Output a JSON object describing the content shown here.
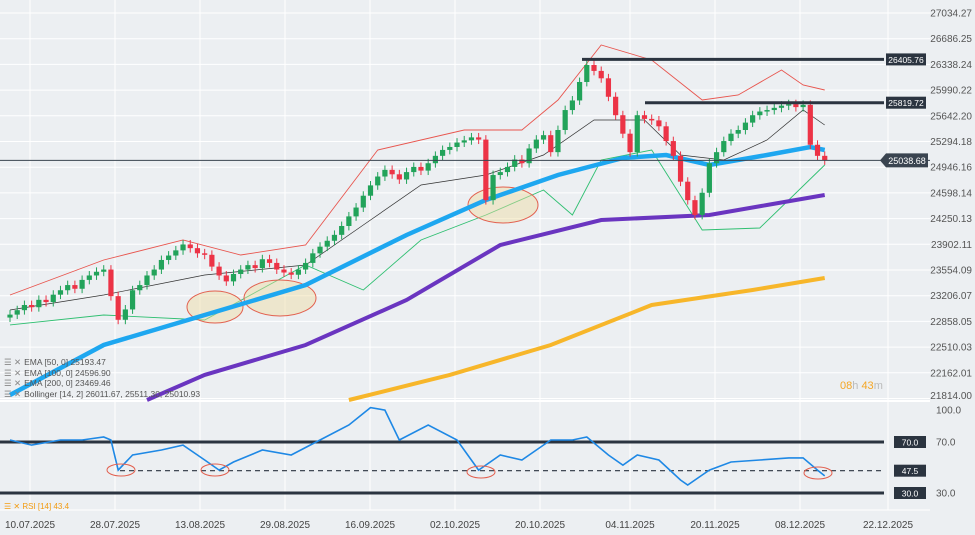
{
  "chart_data": [
    {
      "type": "candlestick",
      "title": "",
      "x_tick_labels": [
        "10.07.2025",
        "28.07.2025",
        "13.08.2025",
        "29.08.2025",
        "16.09.2025",
        "02.10.2025",
        "20.10.2025",
        "04.11.2025",
        "20.11.2025",
        "08.12.2025",
        "22.12.2025"
      ],
      "y_tick_labels": [
        "27034.27",
        "26686.25",
        "26338.24",
        "25990.22",
        "25642.20",
        "25294.18",
        "24946.16",
        "24598.14",
        "24250.13",
        "23902.11",
        "23554.09",
        "23206.07",
        "22858.05",
        "22510.03",
        "22162.01",
        "21814.00"
      ],
      "ylim": [
        21814.0,
        27034.27
      ],
      "grid": true,
      "closes": [
        22950,
        23010,
        23080,
        23050,
        23150,
        23120,
        23220,
        23280,
        23350,
        23300,
        23420,
        23480,
        23530,
        23560,
        23200,
        22880,
        23020,
        23280,
        23350,
        23480,
        23560,
        23690,
        23750,
        23820,
        23900,
        23850,
        23780,
        23760,
        23600,
        23480,
        23400,
        23500,
        23560,
        23620,
        23580,
        23700,
        23650,
        23560,
        23520,
        23490,
        23560,
        23650,
        23780,
        23870,
        23950,
        24030,
        24150,
        24280,
        24400,
        24560,
        24700,
        24820,
        24910,
        24850,
        24780,
        24880,
        24950,
        24900,
        25000,
        25100,
        25180,
        25220,
        25280,
        25310,
        25350,
        25320,
        24500,
        24840,
        24880,
        24950,
        25050,
        25000,
        25200,
        25320,
        25380,
        25150,
        25450,
        25720,
        25850,
        26100,
        26330,
        26250,
        26150,
        25900,
        25650,
        25400,
        25150,
        25650,
        25600,
        25580,
        25500,
        25300,
        25100,
        24750,
        24500,
        24300,
        24600,
        25000,
        25150,
        25300,
        25400,
        25450,
        25550,
        25650,
        25700,
        25720,
        25750,
        25780,
        25800,
        25760,
        25790,
        25250,
        25100,
        25038
      ],
      "indicators": [
        {
          "name": "EMA [50, 0]",
          "value": "25193.47",
          "color": "#1ea7f0",
          "points": [
            [
              0,
              21862
            ],
            [
              13,
              22539
            ],
            [
              27,
              22945
            ],
            [
              41,
              23351
            ],
            [
              55,
              24028
            ],
            [
              66,
              24502
            ],
            [
              76,
              24841
            ],
            [
              85,
              25071
            ],
            [
              91,
              25111
            ],
            [
              97,
              24976
            ],
            [
              105,
              25111
            ],
            [
              111,
              25220
            ],
            [
              113,
              25179
            ]
          ]
        },
        {
          "name": "EMA [100, 0]",
          "value": "24596.90",
          "color": "#6a35c0",
          "points": [
            [
              19,
              21794
            ],
            [
              27,
              22133
            ],
            [
              41,
              22539
            ],
            [
              55,
              23148
            ],
            [
              68,
              23893
            ],
            [
              82,
              24231
            ],
            [
              97,
              24299
            ],
            [
              105,
              24434
            ],
            [
              113,
              24570
            ]
          ]
        },
        {
          "name": "EMA [200, 0]",
          "value": "23469.46",
          "color": "#f7b62a",
          "points": [
            [
              47,
              21794
            ],
            [
              61,
              22133
            ],
            [
              75,
              22539
            ],
            [
              89,
              23080
            ],
            [
              103,
              23283
            ],
            [
              113,
              23446
            ]
          ]
        },
        {
          "name": "Bollinger [14, 2]",
          "value": "26011.67,  25511.30,  25010.93",
          "color": "#e8554e",
          "upper": [
            [
              0,
              23216
            ],
            [
              13,
              23690
            ],
            [
              24,
              23960
            ],
            [
              32,
              23757
            ],
            [
              41,
              23893
            ],
            [
              51,
              25179
            ],
            [
              63,
              25450
            ],
            [
              71,
              25450
            ],
            [
              76,
              25856
            ],
            [
              82,
              26601
            ],
            [
              89,
              26398
            ],
            [
              96,
              25856
            ],
            [
              101,
              25924
            ],
            [
              107,
              26262
            ],
            [
              110,
              26059
            ],
            [
              113,
              25991
            ]
          ],
          "middle": [
            [
              0,
              23013
            ],
            [
              13,
              23216
            ],
            [
              27,
              23487
            ],
            [
              41,
              23622
            ],
            [
              49,
              24163
            ],
            [
              57,
              24705
            ],
            [
              66,
              24841
            ],
            [
              74,
              25111
            ],
            [
              81,
              25585
            ],
            [
              88,
              25585
            ],
            [
              93,
              25111
            ],
            [
              99,
              25044
            ],
            [
              105,
              25314
            ],
            [
              110,
              25721
            ],
            [
              113,
              25518
            ]
          ],
          "lower": [
            [
              0,
              22810
            ],
            [
              13,
              22945
            ],
            [
              27,
              22877
            ],
            [
              41,
              23622
            ],
            [
              49,
              23283
            ],
            [
              57,
              23960
            ],
            [
              66,
              24299
            ],
            [
              74,
              24637
            ],
            [
              78,
              24299
            ],
            [
              82,
              25044
            ],
            [
              89,
              25179
            ],
            [
              96,
              24096
            ],
            [
              104,
              24123
            ],
            [
              108,
              24502
            ],
            [
              113,
              24976
            ]
          ]
        }
      ],
      "horizontal_levels": [
        {
          "label": "26405.76",
          "price": 26405.76
        },
        {
          "label": "25819.72",
          "price": 25819.72
        }
      ],
      "last_price": {
        "label": "25038.68",
        "price": 25038.68
      }
    },
    {
      "type": "line",
      "name": "RSI [14]",
      "value": "43.4",
      "color": "#1e88e5",
      "y_tick_labels": [
        "100.0",
        "70.0",
        "30.0"
      ],
      "ylim": [
        0,
        100
      ],
      "levels": [
        {
          "label": "70.0",
          "value": 70
        },
        {
          "label": "47.5",
          "value": 47.5
        },
        {
          "label": "30.0",
          "value": 30
        }
      ],
      "points": [
        [
          0,
          71.6
        ],
        [
          3,
          67.6
        ],
        [
          7,
          71.6
        ],
        [
          10,
          71.6
        ],
        [
          13,
          73.9
        ],
        [
          14,
          71.6
        ],
        [
          15,
          48
        ],
        [
          17,
          59.8
        ],
        [
          21,
          63.7
        ],
        [
          24,
          67.6
        ],
        [
          27,
          55.9
        ],
        [
          29,
          48
        ],
        [
          31,
          54.3
        ],
        [
          35,
          63.7
        ],
        [
          39,
          59.8
        ],
        [
          43,
          71.6
        ],
        [
          47,
          83.3
        ],
        [
          50,
          97
        ],
        [
          52,
          95
        ],
        [
          54,
          71.6
        ],
        [
          58,
          83.3
        ],
        [
          62,
          71.6
        ],
        [
          65,
          48
        ],
        [
          68,
          59.8
        ],
        [
          71,
          55.9
        ],
        [
          75,
          71.6
        ],
        [
          78,
          71.6
        ],
        [
          80,
          73.9
        ],
        [
          83,
          59.8
        ],
        [
          85,
          51.9
        ],
        [
          87,
          59.8
        ],
        [
          90,
          55.9
        ],
        [
          93,
          40.2
        ],
        [
          94,
          36.3
        ],
        [
          96,
          44.1
        ],
        [
          97,
          48
        ],
        [
          100,
          54.3
        ],
        [
          104,
          55.9
        ],
        [
          108,
          57.5
        ],
        [
          110,
          57.5
        ],
        [
          112,
          48
        ],
        [
          113,
          43.4
        ]
      ]
    }
  ],
  "timer": {
    "hours": "08",
    "h": "h",
    "minutes": "43",
    "m": "m"
  }
}
